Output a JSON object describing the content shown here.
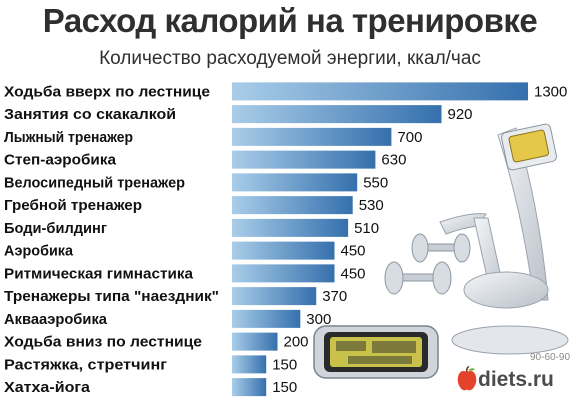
{
  "chart_data": {
    "type": "bar",
    "orientation": "horizontal",
    "title": "Расход калорий на тренировке",
    "subtitle": "Количество расходуемой энергии, ккал/час",
    "categories": [
      "Ходьба вверх по лестнице",
      "Занятия со скакалкой",
      "Лыжный тренажер",
      "Степ-аэробика",
      "Велосипедный тренажер",
      "Гребной тренажер",
      "Боди-билдинг",
      "Аэробика",
      "Ритмическая гимнастика",
      "Тренажеры типа \"наездник\"",
      "Аквааэробика",
      "Ходьба вниз по лестнице",
      "Растяжка, стретчинг",
      "Хатха-йога"
    ],
    "values": [
      1300,
      920,
      700,
      630,
      550,
      530,
      510,
      450,
      450,
      370,
      300,
      200,
      150,
      150
    ],
    "xlim": [
      0,
      1300
    ],
    "grid": false,
    "legend": "none",
    "colors": {
      "bar_light": "#9cc4e4",
      "bar_dark": "#3a78b5",
      "text": "#111111"
    }
  },
  "watermarks": {
    "brand_line": "90-60-90",
    "site": "diets.ru"
  },
  "icons": [
    "apple-icon",
    "exercise-bike-illustration",
    "dumbbell-illustration",
    "stopwatch-display-illustration"
  ]
}
